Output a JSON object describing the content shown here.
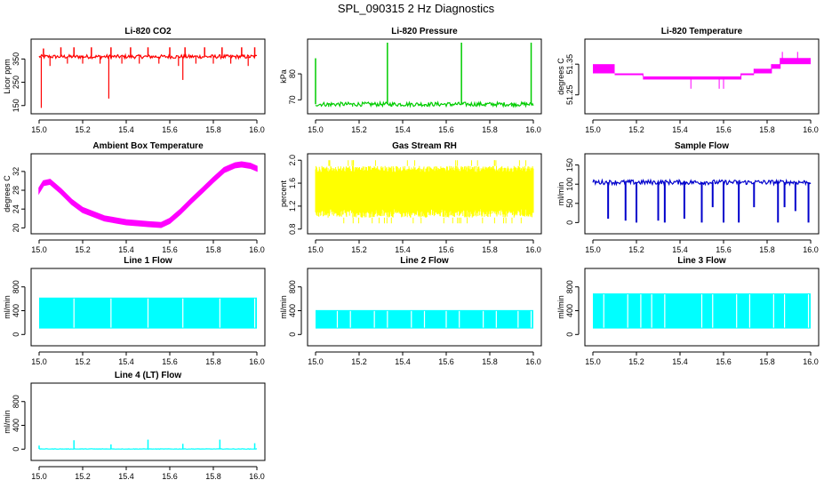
{
  "figure": {
    "title": "SPL_090315  2 Hz Diagnostics"
  },
  "colors": {
    "red": "#ff0000",
    "green": "#00cc00",
    "magenta": "#ff00ff",
    "yellow": "#ffff00",
    "blue": "#0000cc",
    "cyan": "#00ffff"
  },
  "chart_data": [
    {
      "id": "co2",
      "type": "line",
      "title": "Li-820 CO2",
      "ylabel": "Licor ppm",
      "color_key": "red",
      "xlim": [
        15.0,
        16.0
      ],
      "xticks": [
        15.0,
        15.2,
        15.4,
        15.6,
        15.8,
        16.0
      ],
      "xtick_labels": [
        "15.0",
        "15.2",
        "15.4",
        "15.6",
        "15.8",
        "16.0"
      ],
      "ylim": [
        130,
        420
      ],
      "yticks": [
        150,
        250,
        350
      ],
      "ytick_labels": [
        "150",
        "250",
        "350"
      ],
      "baseline": 360,
      "band": 8,
      "spikes_up": [
        [
          15.02,
          395
        ],
        [
          15.1,
          400
        ],
        [
          15.16,
          400
        ],
        [
          15.24,
          400
        ],
        [
          15.33,
          400
        ],
        [
          15.42,
          400
        ],
        [
          15.5,
          400
        ],
        [
          15.6,
          400
        ],
        [
          15.67,
          400
        ],
        [
          15.76,
          400
        ],
        [
          15.84,
          400
        ],
        [
          15.93,
          400
        ],
        [
          15.99,
          400
        ]
      ],
      "spikes_down": [
        [
          15.01,
          140
        ],
        [
          15.32,
          180
        ],
        [
          15.66,
          260
        ],
        [
          15.05,
          320
        ],
        [
          15.13,
          330
        ],
        [
          15.2,
          330
        ],
        [
          15.28,
          330
        ],
        [
          15.38,
          330
        ],
        [
          15.46,
          330
        ],
        [
          15.55,
          330
        ],
        [
          15.64,
          320
        ],
        [
          15.72,
          330
        ],
        [
          15.8,
          330
        ],
        [
          15.88,
          330
        ],
        [
          15.96,
          320
        ]
      ]
    },
    {
      "id": "pressure",
      "type": "line",
      "title": "Li-820 Pressure",
      "ylabel": "kPa",
      "color_key": "green",
      "xlim": [
        15.0,
        16.0
      ],
      "xticks": [
        15.0,
        15.2,
        15.4,
        15.6,
        15.8,
        16.0
      ],
      "xtick_labels": [
        "15.0",
        "15.2",
        "15.4",
        "15.6",
        "15.8",
        "16.0"
      ],
      "ylim": [
        66,
        92
      ],
      "yticks": [
        70,
        80
      ],
      "ytick_labels": [
        "70",
        "80"
      ],
      "baseline": 68.3,
      "band": 0.8,
      "spikes_up": [
        [
          15.0,
          86
        ],
        [
          15.33,
          92
        ],
        [
          15.67,
          92
        ],
        [
          15.99,
          92
        ]
      ],
      "spikes_down": [
        [
          15.06,
          67.3
        ],
        [
          15.17,
          67.4
        ],
        [
          15.35,
          67.5
        ],
        [
          15.5,
          67.4
        ],
        [
          15.62,
          67.5
        ],
        [
          15.78,
          67.4
        ],
        [
          15.9,
          67.5
        ]
      ]
    },
    {
      "id": "licor-temp",
      "type": "step",
      "title": "Li-820 Temperature",
      "ylabel": "degrees C",
      "color_key": "magenta",
      "xlim": [
        15.0,
        16.0
      ],
      "xticks": [
        15.0,
        15.2,
        15.4,
        15.6,
        15.8,
        16.0
      ],
      "xtick_labels": [
        "15.0",
        "15.2",
        "15.4",
        "15.6",
        "15.8",
        "16.0"
      ],
      "ylim": [
        51.2,
        51.42
      ],
      "yticks": [
        51.25,
        51.35
      ],
      "ytick_labels": [
        "51.25",
        "51.35"
      ],
      "segments": [
        [
          15.0,
          15.1,
          51.32,
          51.35
        ],
        [
          15.1,
          15.23,
          51.32,
          51.32
        ],
        [
          15.23,
          15.68,
          51.3,
          51.31
        ],
        [
          15.68,
          15.74,
          51.32,
          51.32
        ],
        [
          15.74,
          15.82,
          51.32,
          51.335
        ],
        [
          15.82,
          15.86,
          51.335,
          51.35
        ],
        [
          15.86,
          16.0,
          51.35,
          51.37
        ]
      ],
      "spikes": [
        [
          15.45,
          51.27
        ],
        [
          15.58,
          51.27
        ],
        [
          15.6,
          51.27
        ],
        [
          15.87,
          51.39
        ],
        [
          15.94,
          51.39
        ]
      ]
    },
    {
      "id": "ambient-temp",
      "type": "line",
      "title": "Ambient Box Temperature",
      "ylabel": "degrees C",
      "color_key": "magenta",
      "xlim": [
        15.0,
        16.0
      ],
      "xticks": [
        15.0,
        15.2,
        15.4,
        15.6,
        15.8,
        16.0
      ],
      "xtick_labels": [
        "15.0",
        "15.2",
        "15.4",
        "15.6",
        "15.8",
        "16.0"
      ],
      "ylim": [
        19.5,
        35
      ],
      "yticks": [
        20,
        24,
        28,
        32
      ],
      "ytick_labels": [
        "20",
        "24",
        "28",
        "32"
      ],
      "x": [
        15.0,
        15.02,
        15.05,
        15.1,
        15.15,
        15.2,
        15.3,
        15.4,
        15.5,
        15.56,
        15.6,
        15.65,
        15.7,
        15.75,
        15.8,
        15.85,
        15.9,
        15.93,
        15.97,
        16.0
      ],
      "y": [
        28.0,
        29.5,
        29.8,
        27.8,
        25.5,
        23.8,
        22.0,
        21.2,
        20.8,
        20.6,
        21.5,
        23.5,
        25.8,
        28.0,
        30.2,
        32.3,
        33.3,
        33.5,
        33.2,
        32.6
      ],
      "band": 0.5
    },
    {
      "id": "gas-rh",
      "type": "noise",
      "title": "Gas Stream RH",
      "ylabel": "percent",
      "color_key": "yellow",
      "xlim": [
        15.0,
        16.0
      ],
      "xticks": [
        15.0,
        15.2,
        15.4,
        15.6,
        15.8,
        16.0
      ],
      "xtick_labels": [
        "15.0",
        "15.2",
        "15.4",
        "15.6",
        "15.8",
        "16.0"
      ],
      "ylim": [
        0.78,
        2.05
      ],
      "yticks": [
        0.8,
        1.2,
        1.6,
        2.0
      ],
      "ytick_labels": [
        "0.8",
        "1.2",
        "1.6",
        "2.0"
      ],
      "range_low": 1.0,
      "range_high": 1.9,
      "extreme_low": 0.9,
      "extreme_high": 2.0
    },
    {
      "id": "sample-flow",
      "type": "line",
      "title": "Sample Flow",
      "ylabel": "ml/min",
      "color_key": "blue",
      "xlim": [
        15.0,
        16.0
      ],
      "xticks": [
        15.0,
        15.2,
        15.4,
        15.6,
        15.8,
        16.0
      ],
      "xtick_labels": [
        "15.0",
        "15.2",
        "15.4",
        "15.6",
        "15.8",
        "16.0"
      ],
      "ylim": [
        -20,
        170
      ],
      "yticks": [
        0,
        50,
        100,
        150
      ],
      "ytick_labels": [
        "0",
        "50",
        "100",
        "150"
      ],
      "baseline": 105,
      "band": 6,
      "dips": [
        [
          15.07,
          10
        ],
        [
          15.15,
          5
        ],
        [
          15.2,
          0
        ],
        [
          15.3,
          5
        ],
        [
          15.33,
          0
        ],
        [
          15.42,
          10
        ],
        [
          15.5,
          0
        ],
        [
          15.55,
          40
        ],
        [
          15.6,
          0
        ],
        [
          15.67,
          0
        ],
        [
          15.74,
          40
        ],
        [
          15.85,
          0
        ],
        [
          15.88,
          40
        ],
        [
          15.93,
          30
        ],
        [
          15.99,
          0
        ]
      ]
    },
    {
      "id": "line1-flow",
      "type": "flow",
      "title": "Line 1 Flow",
      "ylabel": "ml/min",
      "color_key": "cyan",
      "xlim": [
        15.0,
        16.0
      ],
      "xticks": [
        15.0,
        15.2,
        15.4,
        15.6,
        15.8,
        16.0
      ],
      "xtick_labels": [
        "15.0",
        "15.2",
        "15.4",
        "15.6",
        "15.8",
        "16.0"
      ],
      "ylim": [
        -130,
        1050
      ],
      "yticks": [
        0,
        400,
        800
      ],
      "ytick_labels": [
        "0",
        "400",
        "800"
      ],
      "low": 100,
      "high": 620,
      "gaps": [
        15.16,
        15.33,
        15.5,
        15.66,
        15.83,
        15.99
      ]
    },
    {
      "id": "line2-flow",
      "type": "flow",
      "title": "Line 2 Flow",
      "ylabel": "ml/min",
      "color_key": "cyan",
      "xlim": [
        15.0,
        16.0
      ],
      "xticks": [
        15.0,
        15.2,
        15.4,
        15.6,
        15.8,
        16.0
      ],
      "xtick_labels": [
        "15.0",
        "15.2",
        "15.4",
        "15.6",
        "15.8",
        "16.0"
      ],
      "ylim": [
        -130,
        1050
      ],
      "yticks": [
        0,
        400,
        800
      ],
      "ytick_labels": [
        "0",
        "400",
        "800"
      ],
      "low": 100,
      "high": 410,
      "gaps": [
        15.1,
        15.16,
        15.27,
        15.33,
        15.44,
        15.5,
        15.6,
        15.66,
        15.77,
        15.83,
        15.93,
        15.99
      ]
    },
    {
      "id": "line3-flow",
      "type": "flow",
      "title": "Line 3 Flow",
      "ylabel": "ml/min",
      "color_key": "cyan",
      "xlim": [
        15.0,
        16.0
      ],
      "xticks": [
        15.0,
        15.2,
        15.4,
        15.6,
        15.8,
        16.0
      ],
      "xtick_labels": [
        "15.0",
        "15.2",
        "15.4",
        "15.6",
        "15.8",
        "16.0"
      ],
      "ylim": [
        -130,
        1050
      ],
      "yticks": [
        0,
        400,
        800
      ],
      "ytick_labels": [
        "0",
        "400",
        "800"
      ],
      "low": 100,
      "high": 690,
      "gaps": [
        15.05,
        15.16,
        15.22,
        15.27,
        15.33,
        15.5,
        15.55,
        15.66,
        15.72,
        15.83,
        15.88,
        15.99
      ]
    },
    {
      "id": "line4-flow",
      "type": "line",
      "title": "Line 4 (LT) Flow",
      "ylabel": "ml/min",
      "color_key": "cyan",
      "xlim": [
        15.0,
        16.0
      ],
      "xticks": [
        15.0,
        15.2,
        15.4,
        15.6,
        15.8,
        16.0
      ],
      "xtick_labels": [
        "15.0",
        "15.2",
        "15.4",
        "15.6",
        "15.8",
        "16.0"
      ],
      "ylim": [
        -130,
        1050
      ],
      "yticks": [
        0,
        400,
        800
      ],
      "ytick_labels": [
        "0",
        "400",
        "800"
      ],
      "baseline": 3,
      "band": 3,
      "spikes_up": [
        [
          15.0,
          60
        ],
        [
          15.16,
          150
        ],
        [
          15.33,
          80
        ],
        [
          15.5,
          160
        ],
        [
          15.66,
          90
        ],
        [
          15.83,
          160
        ],
        [
          15.99,
          100
        ]
      ],
      "spikes_down": []
    }
  ]
}
